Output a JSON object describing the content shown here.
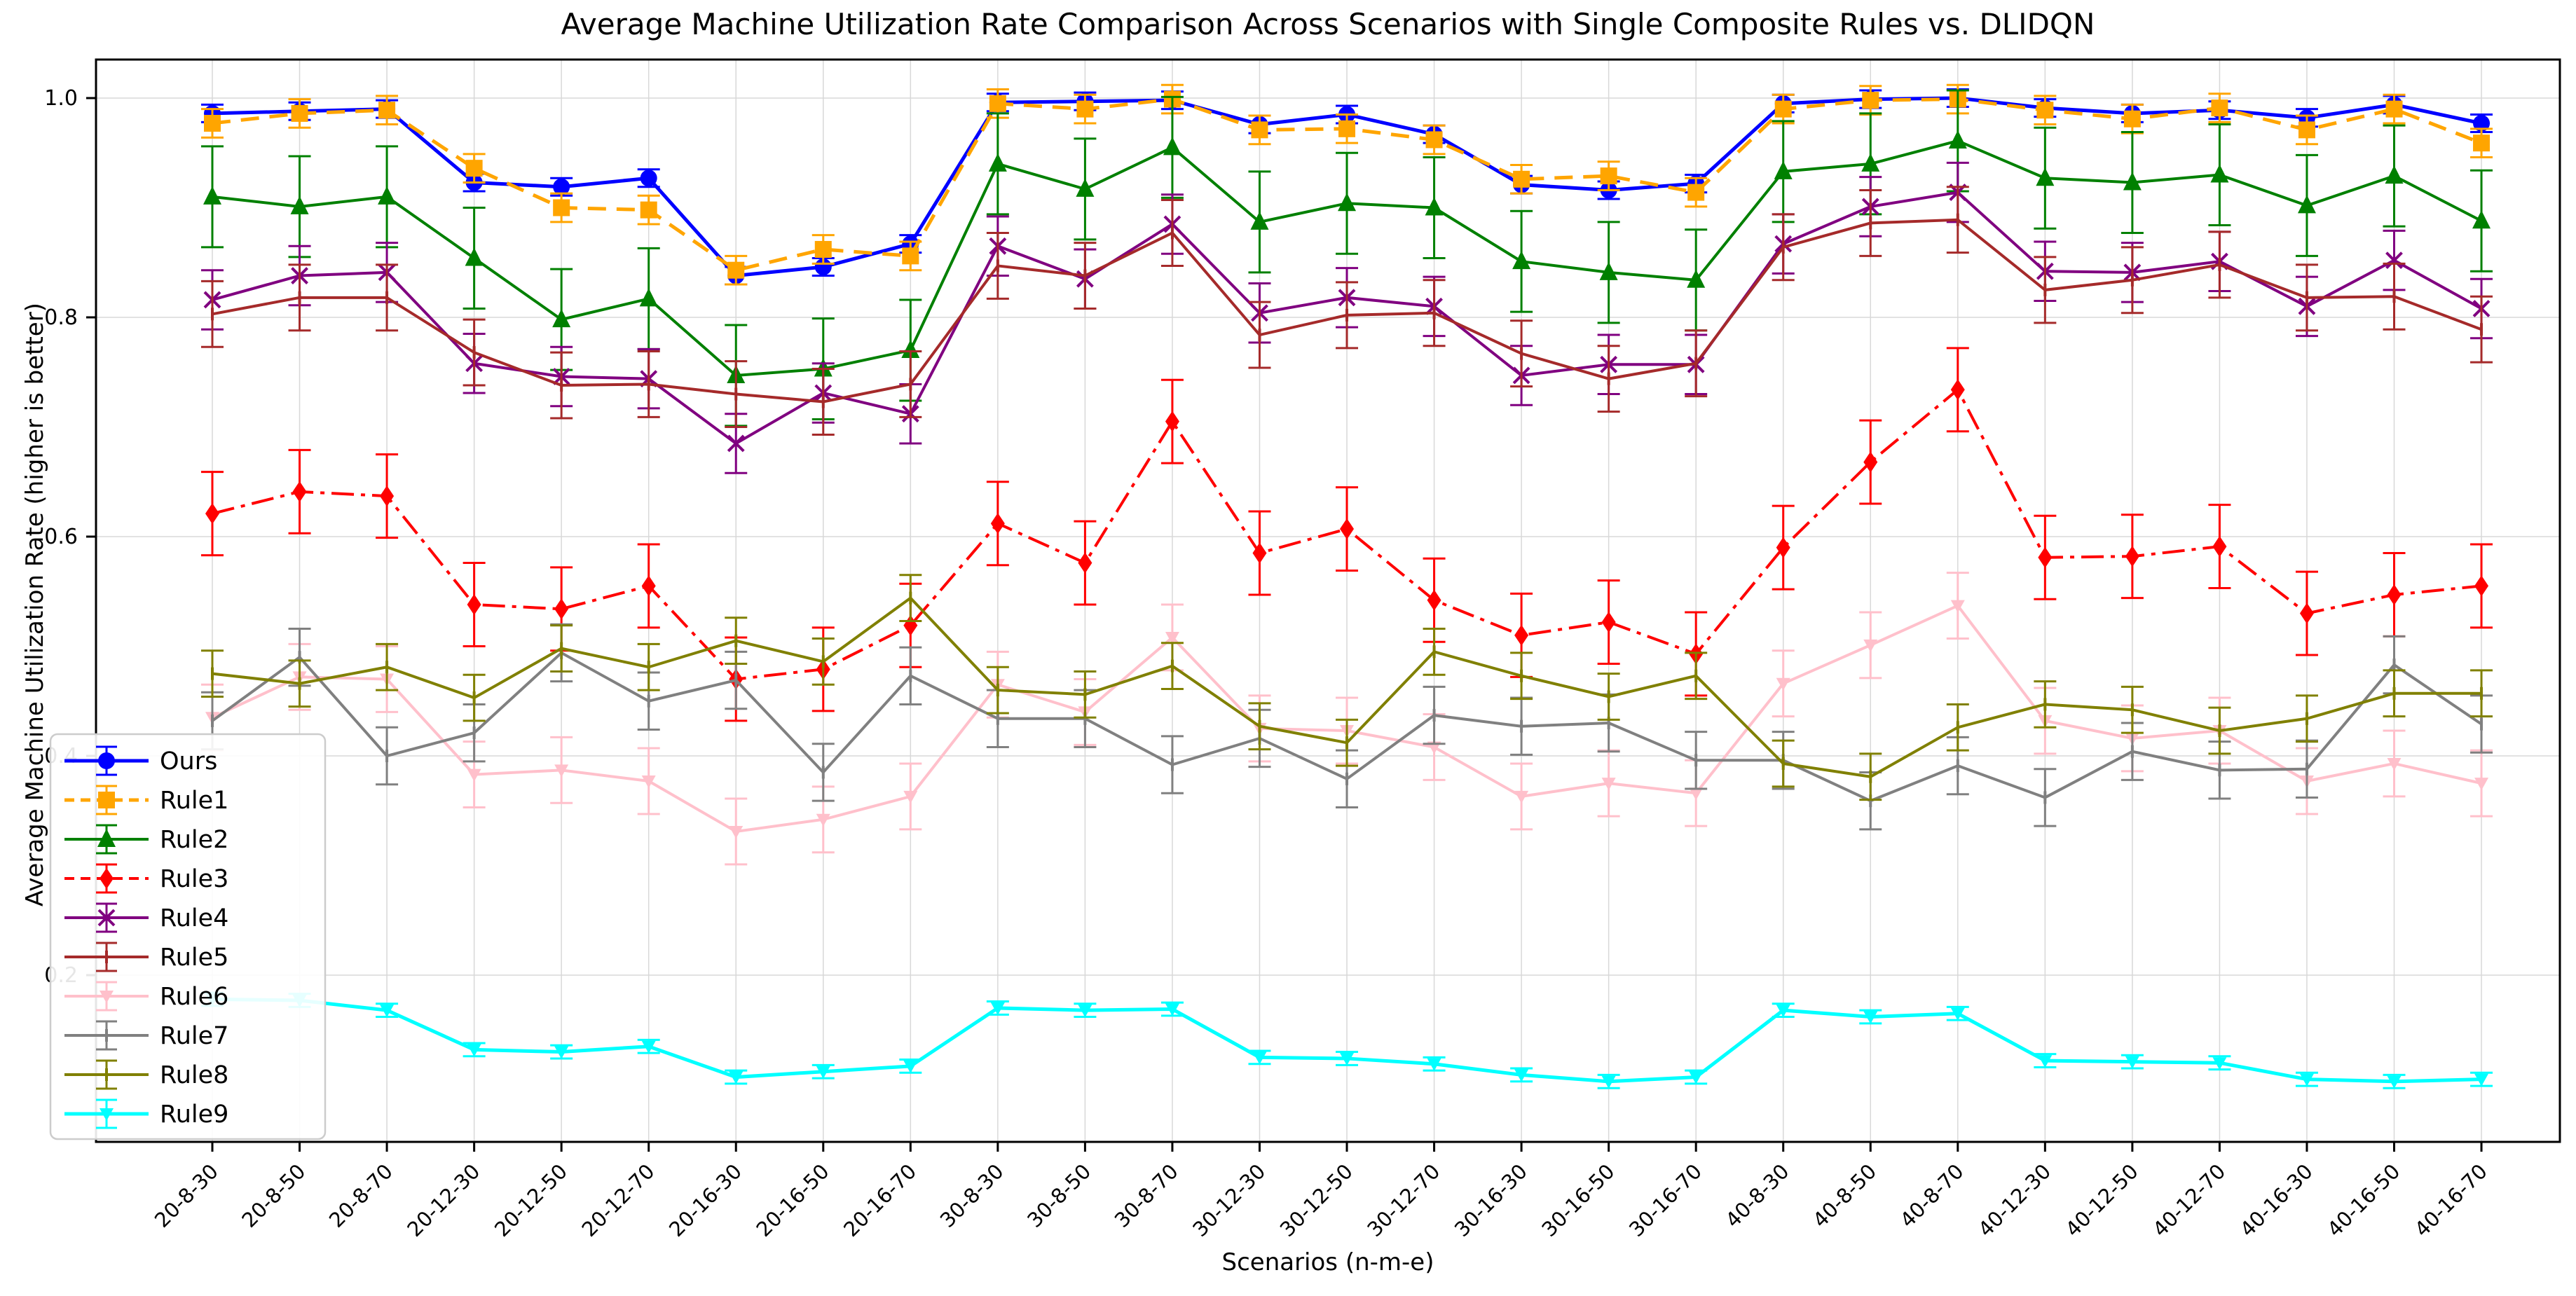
{
  "figure": {
    "title": "Average Machine Utilization Rate Comparison Across Scenarios with Single Composite Rules vs. DLIDQN",
    "xlabel": "Scenarios (n-m-e)",
    "ylabel": "Average Machine Utilization Rate (higher is better)"
  },
  "chart_data": {
    "type": "line",
    "title": "Average Machine Utilization Rate Comparison Across Scenarios with Single Composite Rules vs. DLIDQN",
    "xlabel": "Scenarios (n-m-e)",
    "ylabel": "Average Machine Utilization Rate (higher is better)",
    "grid": true,
    "legend_position": "center-left",
    "ylim": [
      0.048,
      1.035
    ],
    "yticks": [
      0.2,
      0.4,
      0.6,
      0.8,
      1.0
    ],
    "ytick_labels": [
      "0.2",
      "0.4",
      "0.6",
      "0.8",
      "1.0"
    ],
    "categories": [
      "20-8-30",
      "20-8-50",
      "20-8-70",
      "20-12-30",
      "20-12-50",
      "20-12-70",
      "20-16-30",
      "20-16-50",
      "20-16-70",
      "30-8-30",
      "30-8-50",
      "30-8-70",
      "30-12-30",
      "30-12-50",
      "30-12-70",
      "30-16-30",
      "30-16-50",
      "30-16-70",
      "40-8-30",
      "40-8-50",
      "40-8-70",
      "40-12-30",
      "40-12-50",
      "40-12-70",
      "40-16-30",
      "40-16-50",
      "40-16-70"
    ],
    "series": [
      {
        "name": "Ours",
        "color": "#0000ff",
        "linestyle": "solid",
        "marker": "circle",
        "marker_size": 12,
        "linewidth": 5,
        "err": 0.008,
        "values": [
          0.986,
          0.988,
          0.99,
          0.923,
          0.919,
          0.927,
          0.838,
          0.846,
          0.867,
          0.996,
          0.997,
          0.998,
          0.976,
          0.985,
          0.967,
          0.921,
          0.916,
          0.922,
          0.995,
          0.999,
          1.0,
          0.991,
          0.986,
          0.989,
          0.982,
          0.994,
          0.977
        ]
      },
      {
        "name": "Rule1",
        "color": "#ffa500",
        "linestyle": "dashed",
        "marker": "square",
        "marker_size": 12,
        "linewidth": 5,
        "err": 0.013,
        "values": [
          0.977,
          0.986,
          0.989,
          0.936,
          0.9,
          0.898,
          0.843,
          0.862,
          0.856,
          0.995,
          0.99,
          0.999,
          0.971,
          0.972,
          0.962,
          0.926,
          0.929,
          0.914,
          0.99,
          0.998,
          0.999,
          0.989,
          0.981,
          0.991,
          0.971,
          0.99,
          0.959
        ]
      },
      {
        "name": "Rule2",
        "color": "#008000",
        "linestyle": "solid",
        "marker": "triangle",
        "marker_size": 13,
        "linewidth": 4,
        "err": 0.046,
        "values": [
          0.91,
          0.901,
          0.91,
          0.854,
          0.798,
          0.817,
          0.747,
          0.753,
          0.77,
          0.94,
          0.917,
          0.955,
          0.887,
          0.904,
          0.9,
          0.851,
          0.841,
          0.834,
          0.933,
          0.94,
          0.961,
          0.927,
          0.923,
          0.93,
          0.902,
          0.929,
          0.888
        ]
      },
      {
        "name": "Rule3",
        "color": "#ff0000",
        "linestyle": "dashdot",
        "marker": "diamond",
        "marker_size": 13,
        "linewidth": 4,
        "err": 0.038,
        "values": [
          0.621,
          0.641,
          0.637,
          0.538,
          0.534,
          0.555,
          0.47,
          0.479,
          0.519,
          0.612,
          0.576,
          0.705,
          0.585,
          0.607,
          0.542,
          0.51,
          0.522,
          0.493,
          0.59,
          0.668,
          0.734,
          0.581,
          0.582,
          0.591,
          0.53,
          0.547,
          0.555
        ]
      },
      {
        "name": "Rule4",
        "color": "#800080",
        "linestyle": "solid",
        "marker": "x",
        "marker_size": 13,
        "linewidth": 4,
        "err": 0.027,
        "values": [
          0.816,
          0.838,
          0.841,
          0.758,
          0.746,
          0.744,
          0.685,
          0.731,
          0.712,
          0.865,
          0.835,
          0.885,
          0.804,
          0.818,
          0.81,
          0.747,
          0.757,
          0.757,
          0.867,
          0.901,
          0.914,
          0.842,
          0.841,
          0.851,
          0.81,
          0.852,
          0.808
        ]
      },
      {
        "name": "Rule5",
        "color": "#a52a2a",
        "linestyle": "solid",
        "marker": "tick",
        "marker_size": 9,
        "linewidth": 4,
        "err": 0.03,
        "values": [
          0.803,
          0.818,
          0.818,
          0.768,
          0.738,
          0.739,
          0.73,
          0.723,
          0.739,
          0.847,
          0.838,
          0.877,
          0.784,
          0.802,
          0.804,
          0.767,
          0.744,
          0.758,
          0.864,
          0.886,
          0.889,
          0.825,
          0.834,
          0.848,
          0.818,
          0.819,
          0.789
        ]
      },
      {
        "name": "Rule6",
        "color": "#ffc0cb",
        "linestyle": "solid",
        "marker": "triangle-down",
        "marker_size": 10,
        "linewidth": 4,
        "err": 0.03,
        "values": [
          0.435,
          0.472,
          0.47,
          0.383,
          0.387,
          0.377,
          0.331,
          0.342,
          0.363,
          0.465,
          0.44,
          0.508,
          0.425,
          0.423,
          0.408,
          0.363,
          0.375,
          0.366,
          0.466,
          0.501,
          0.537,
          0.432,
          0.416,
          0.423,
          0.377,
          0.393,
          0.375
        ]
      },
      {
        "name": "Rule7",
        "color": "#808080",
        "linestyle": "solid",
        "marker": "tick",
        "marker_size": 9,
        "linewidth": 4,
        "err": 0.026,
        "values": [
          0.432,
          0.49,
          0.4,
          0.421,
          0.494,
          0.45,
          0.469,
          0.385,
          0.473,
          0.434,
          0.434,
          0.392,
          0.416,
          0.379,
          0.437,
          0.427,
          0.43,
          0.396,
          0.396,
          0.359,
          0.391,
          0.362,
          0.404,
          0.387,
          0.388,
          0.483,
          0.429
        ]
      },
      {
        "name": "Rule8",
        "color": "#808000",
        "linestyle": "solid",
        "marker": "tick",
        "marker_size": 9,
        "linewidth": 4,
        "err": 0.021,
        "values": [
          0.475,
          0.466,
          0.481,
          0.453,
          0.498,
          0.481,
          0.505,
          0.486,
          0.544,
          0.46,
          0.456,
          0.482,
          0.427,
          0.412,
          0.495,
          0.473,
          0.454,
          0.473,
          0.393,
          0.381,
          0.426,
          0.447,
          0.442,
          0.423,
          0.434,
          0.457,
          0.457
        ]
      },
      {
        "name": "Rule9",
        "color": "#00ffff",
        "linestyle": "solid",
        "marker": "triangle-down",
        "marker_size": 10,
        "linewidth": 5,
        "err": 0.006,
        "values": [
          0.178,
          0.177,
          0.168,
          0.132,
          0.13,
          0.135,
          0.107,
          0.112,
          0.117,
          0.17,
          0.168,
          0.169,
          0.125,
          0.124,
          0.119,
          0.109,
          0.103,
          0.107,
          0.168,
          0.162,
          0.165,
          0.122,
          0.121,
          0.12,
          0.105,
          0.103,
          0.105
        ]
      }
    ]
  }
}
